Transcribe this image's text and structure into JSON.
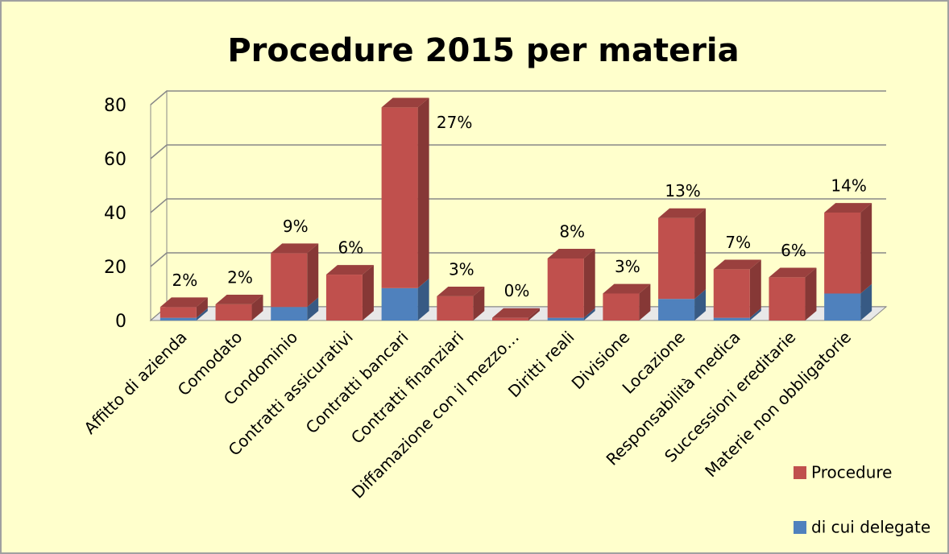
{
  "chart_data": {
    "type": "bar3d_stacked",
    "title": "Procedure 2015 per materia",
    "categories": [
      "Affitto di azienda",
      "Comodato",
      "Condominio",
      "Contratti assicurativi",
      "Contratti bancari",
      "Contratti finanziari",
      "Diffamazione con il mezzo…",
      "Diritti reali",
      "Divisione",
      "Locazione",
      "Responsabilità medica",
      "Successioni ereditarie",
      "Materie non obbligatorie"
    ],
    "series": [
      {
        "name": "di cui delegate",
        "color": "#4f81bd",
        "values": [
          1,
          0,
          5,
          0,
          12,
          0,
          0,
          1,
          0,
          8,
          1,
          0,
          10
        ]
      },
      {
        "name": "Procedure",
        "color": "#c0504d",
        "values": [
          4,
          6,
          20,
          17,
          67,
          9,
          1,
          22,
          10,
          30,
          18,
          16,
          30
        ]
      }
    ],
    "percent_labels": [
      "2%",
      "2%",
      "9%",
      "6%",
      "27%",
      "3%",
      "0%",
      "8%",
      "3%",
      "13%",
      "7%",
      "6%",
      "14%"
    ],
    "ylim": [
      0,
      80
    ],
    "yticks": [
      0,
      20,
      40,
      60,
      80
    ],
    "grid": true,
    "legend": "right"
  }
}
